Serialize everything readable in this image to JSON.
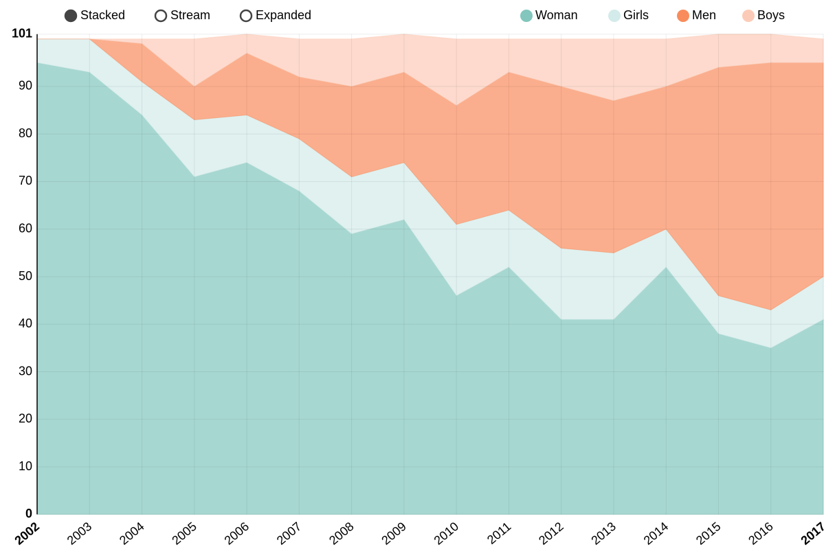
{
  "chart_data": {
    "type": "stacked-area",
    "controls": [
      {
        "label": "Stacked",
        "selected": true
      },
      {
        "label": "Stream",
        "selected": false
      },
      {
        "label": "Expanded",
        "selected": false
      }
    ],
    "categories": [
      "2002",
      "2003",
      "2004",
      "2005",
      "2006",
      "2007",
      "2008",
      "2009",
      "2010",
      "2011",
      "2012",
      "2013",
      "2014",
      "2015",
      "2016",
      "2017"
    ],
    "series": [
      {
        "name": "Woman",
        "color": "#82c6bd",
        "values": [
          95,
          93,
          84,
          71,
          74,
          68,
          59,
          62,
          46,
          52,
          41,
          41,
          52,
          38,
          35,
          41
        ]
      },
      {
        "name": "Girls",
        "color": "#d3ebea",
        "values": [
          5,
          7,
          7,
          12,
          10,
          11,
          12,
          12,
          15,
          12,
          15,
          14,
          8,
          8,
          8,
          9
        ]
      },
      {
        "name": "Men",
        "color": "#f98c5c",
        "values": [
          0,
          0,
          8,
          7,
          13,
          13,
          19,
          19,
          25,
          29,
          34,
          32,
          30,
          48,
          52,
          45
        ]
      },
      {
        "name": "Boys",
        "color": "#fccbb8",
        "values": [
          0,
          0,
          1,
          10,
          4,
          8,
          10,
          8,
          14,
          7,
          10,
          13,
          10,
          7,
          6,
          5
        ]
      }
    ],
    "ylim": [
      0,
      101
    ],
    "yticks": [
      0,
      10,
      20,
      30,
      40,
      50,
      60,
      70,
      80,
      90,
      101
    ],
    "grid": true
  }
}
